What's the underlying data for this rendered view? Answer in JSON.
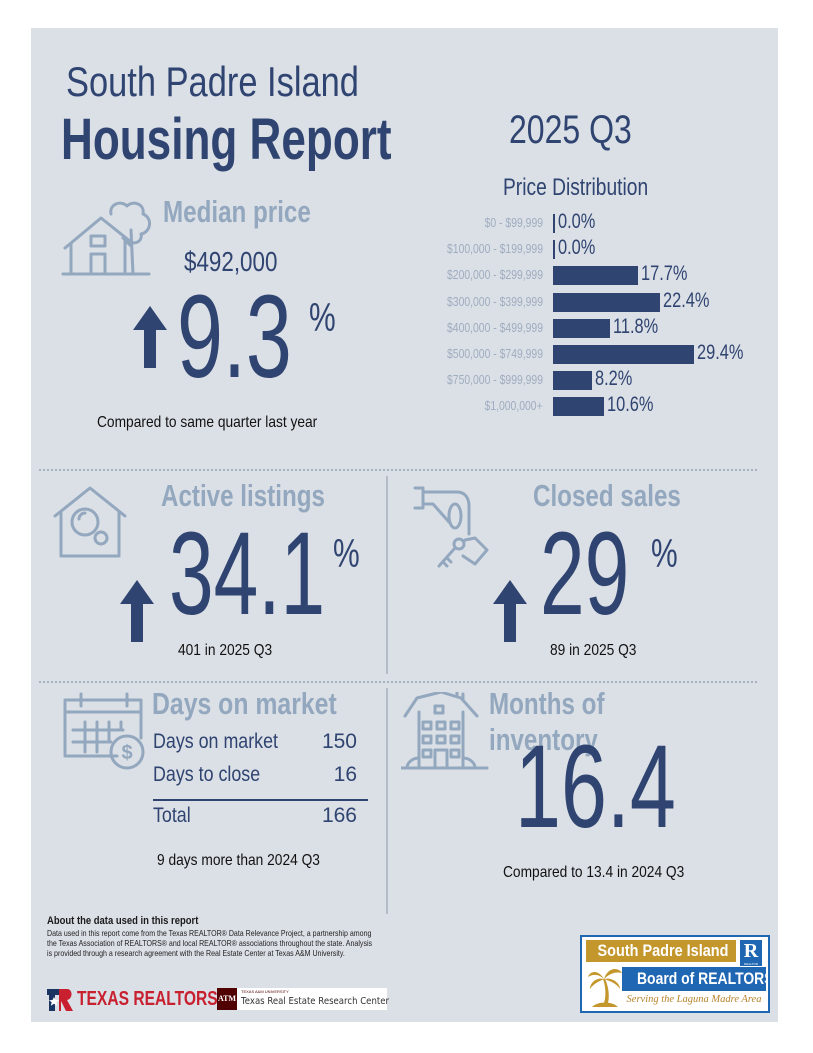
{
  "header": {
    "location": "South Padre Island",
    "title": "Housing Report",
    "quarter": "2025 Q3"
  },
  "median_price": {
    "title": "Median price",
    "value": "$492,000",
    "change": "9.3",
    "change_unit": "%",
    "direction": "up",
    "note": "Compared to same quarter last year",
    "icon": "house-tree-icon"
  },
  "chart_data": {
    "type": "bar",
    "orientation": "horizontal",
    "title": "Price Distribution",
    "categories": [
      "$0 - $99,999",
      "$100,000 - $199,999",
      "$200,000 - $299,999",
      "$300,000 - $399,999",
      "$400,000 - $499,999",
      "$500,000 - $749,999",
      "$750,000 - $999,999",
      "$1,000,000+"
    ],
    "values": [
      0.0,
      0.0,
      17.7,
      22.4,
      11.8,
      29.4,
      8.2,
      10.6
    ],
    "labels": [
      "0.0%",
      "0.0%",
      "17.7%",
      "22.4%",
      "11.8%",
      "29.4%",
      "8.2%",
      "10.6%"
    ],
    "unit": "%",
    "xlabel": "",
    "ylabel": "",
    "grid": false,
    "legend": "none",
    "color": "#2f4470"
  },
  "active_listings": {
    "title": "Active listings",
    "change": "34.1",
    "change_unit": "%",
    "direction": "up",
    "note": "401 in 2025 Q3",
    "icon": "house-search-icon"
  },
  "closed_sales": {
    "title": "Closed sales",
    "change": "29",
    "change_unit": "%",
    "direction": "up",
    "note": "89 in 2025 Q3",
    "icon": "hand-keys-icon"
  },
  "days_on_market": {
    "title": "Days on market",
    "rows": [
      {
        "label": "Days on market",
        "value": "150"
      },
      {
        "label": "Days to close",
        "value": "16"
      }
    ],
    "total": {
      "label": "Total",
      "value": "166"
    },
    "note": "9 days more than 2024 Q3",
    "icon": "calendar-dollar-icon"
  },
  "months_inventory": {
    "title": "Months of inventory",
    "value": "16.4",
    "note": "Compared to 13.4 in 2024 Q3",
    "icon": "building-icon"
  },
  "footer": {
    "about_title": "About the data used in this report",
    "about_text": "Data used in this report come from the Texas REALTOR® Data Relevance Project, a partnership among the Texas Association of REALTORS® and local REALTOR® associations throughout the state. Analysis is provided through a research agreement with the Real Estate Center at Texas A&M University.",
    "logos": {
      "texas_realtors": "TEXAS REALTORS",
      "tamu_small": "TEXAS A&M UNIVERSITY",
      "tamu_center": "Texas Real Estate Research Center",
      "tamu_mark": "ATM",
      "spi_line1": "South Padre Island",
      "spi_line2": "Board of REALTORS",
      "spi_tagline": "Serving the Laguna Madre Area",
      "realtor_mark": "R",
      "realtor_small": "REALTOR"
    },
    "colors": {
      "texas_red": "#c8202f",
      "texas_blue": "#1b3563",
      "tamu_maroon": "#500000",
      "spi_gold": "#c4972c",
      "spi_blue": "#1f66b3"
    }
  },
  "colors": {
    "navy": "#2f4470",
    "steel": "#93a8be",
    "panel": "#dbdfe6"
  }
}
